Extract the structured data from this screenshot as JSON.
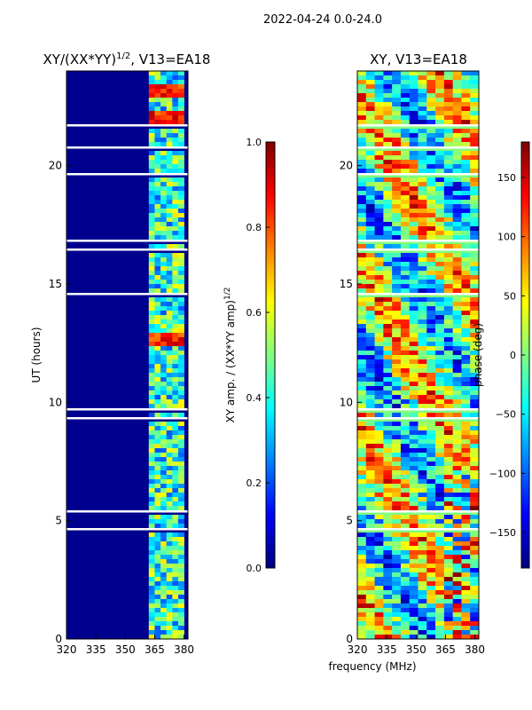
{
  "figure": {
    "suptitle": "2022-04-24 0.0-24.0",
    "shared_xlabel": "frequency (MHz)"
  },
  "chart_data": [
    {
      "type": "heatmap",
      "title_main": "XY/(XX*YY)",
      "title_exp": "1/2",
      "title_suffix": ", V13=EA18",
      "xlabel": "",
      "ylabel": "UT (hours)",
      "xlim": [
        320,
        382
      ],
      "ylim": [
        0,
        24
      ],
      "xticks": [
        320,
        335,
        350,
        365,
        380
      ],
      "yticks": [
        0,
        5,
        10,
        15,
        20
      ],
      "colorbar": {
        "label_main": "XY amp. / (XX*YY amp)",
        "label_exp": "1/2",
        "range": [
          0.0,
          1.0
        ],
        "ticks": [
          "0.0",
          "0.2",
          "0.4",
          "0.6",
          "0.8",
          "1.0"
        ],
        "colormap": "jet"
      },
      "description_values": {
        "background_amplitude_below_360MHz": 0.05,
        "band_360_382MHz_amplitude_range": [
          0.2,
          0.9
        ],
        "high_amplitude_spans_hours": [
          [
            12.5,
            13.0
          ],
          [
            21.9,
            22.4
          ],
          [
            23.0,
            23.5
          ]
        ]
      }
    },
    {
      "type": "heatmap",
      "title": "XY, V13=EA18",
      "ylabel": "",
      "xlim": [
        320,
        382
      ],
      "ylim": [
        0,
        24
      ],
      "xticks": [
        320,
        335,
        350,
        365,
        380
      ],
      "yticks": [
        0,
        5,
        10,
        15,
        20
      ],
      "colorbar": {
        "label": "phase (deg)",
        "range": [
          -180,
          180
        ],
        "ticks": [
          "−150",
          "−100",
          "−50",
          "0",
          "50",
          "100",
          "150"
        ],
        "tick_values": [
          -150,
          -100,
          -50,
          0,
          50,
          100,
          150
        ],
        "colormap": "jet"
      }
    }
  ],
  "colors": {
    "jet": [
      "#00007f",
      "#0000ff",
      "#007fff",
      "#00ffff",
      "#7fff7f",
      "#ffff00",
      "#ff7f00",
      "#ff0000",
      "#7f0000"
    ]
  }
}
